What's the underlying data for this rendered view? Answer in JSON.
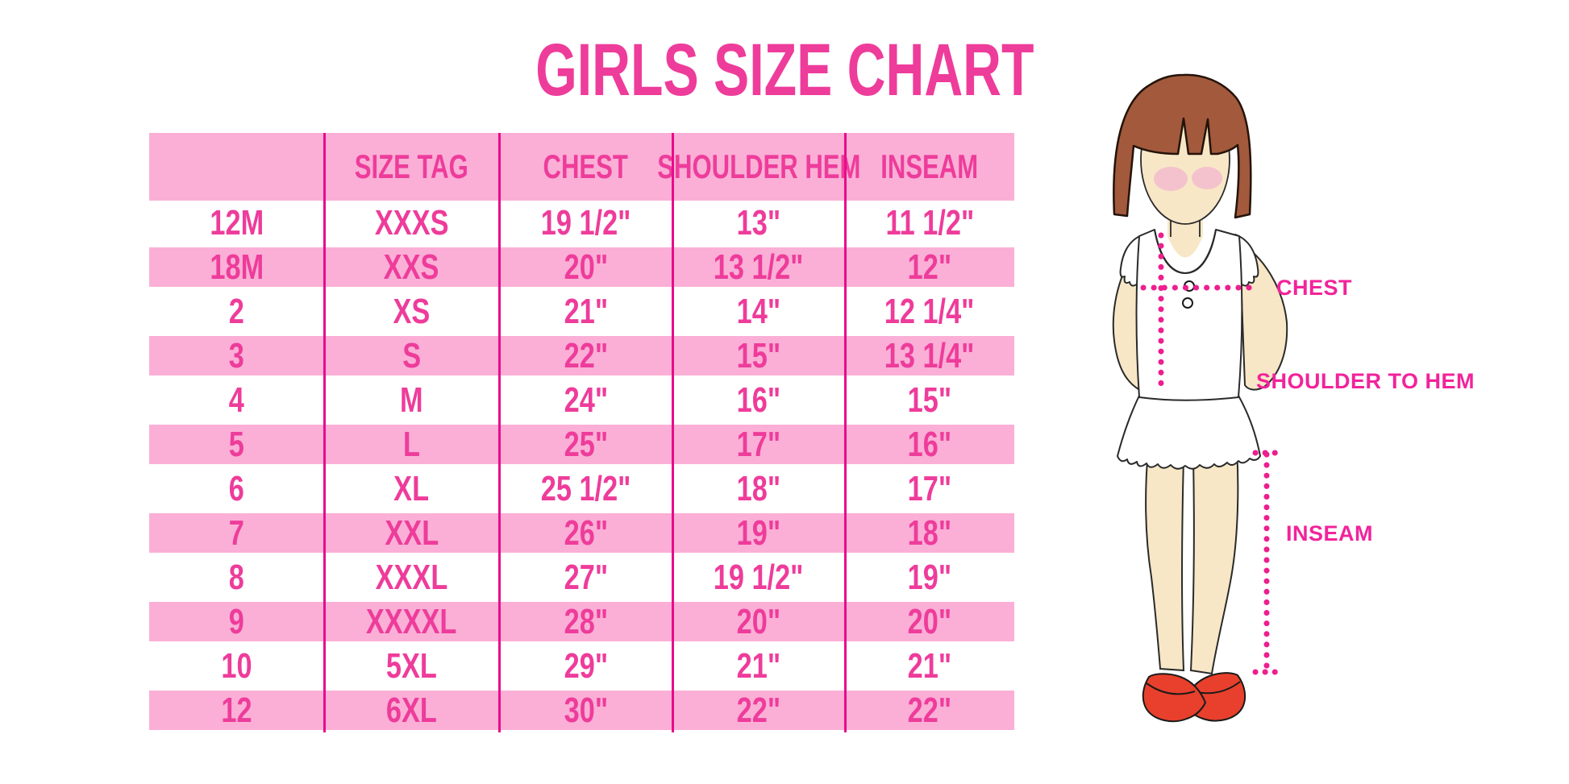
{
  "title": "GIRLS SIZE CHART",
  "table": {
    "headers": [
      "",
      "SIZE TAG",
      "CHEST",
      "SHOULDER HEM",
      "INSEAM"
    ]
  },
  "chart_data": {
    "type": "table",
    "title": "GIRLS SIZE CHART",
    "columns": [
      "",
      "SIZE TAG",
      "CHEST",
      "SHOULDER HEM",
      "INSEAM"
    ],
    "rows": [
      [
        "12M",
        "XXXS",
        "19 1/2\"",
        "13\"",
        "11 1/2\""
      ],
      [
        "18M",
        "XXS",
        "20\"",
        "13 1/2\"",
        "12\""
      ],
      [
        "2",
        "XS",
        "21\"",
        "14\"",
        "12 1/4\""
      ],
      [
        "3",
        "S",
        "22\"",
        "15\"",
        "13 1/4\""
      ],
      [
        "4",
        "M",
        "24\"",
        "16\"",
        "15\""
      ],
      [
        "5",
        "L",
        "25\"",
        "17\"",
        "16\""
      ],
      [
        "6",
        "XL",
        "25 1/2\"",
        "18\"",
        "17\""
      ],
      [
        "7",
        "XXL",
        "26\"",
        "19\"",
        "18\""
      ],
      [
        "8",
        "XXXL",
        "27\"",
        "19 1/2\"",
        "19\""
      ],
      [
        "9",
        "XXXXL",
        "28\"",
        "20\"",
        "20\""
      ],
      [
        "10",
        "5XL",
        "29\"",
        "21\"",
        "21\""
      ],
      [
        "12",
        "6XL",
        "30\"",
        "22\"",
        "22\""
      ]
    ],
    "row_band_style": "alternating white and pink starting white",
    "legend_position": "none",
    "grid": "vertical magenta separators only"
  },
  "diagram": {
    "labels": {
      "chest": "CHEST",
      "shoulder_to_hem": "SHOULDER TO HEM",
      "inseam": "INSEAM"
    }
  },
  "colors": {
    "title_pink": "#ee3c9b",
    "band_pink": "#fbafd6",
    "separator_magenta": "#e70c8b",
    "label_pink": "#f2239b",
    "dotted_line_pink": "#ed1e8f",
    "hair_brown": "#a2593c",
    "skin": "#f7e7c6",
    "blush": "#f4c2cc",
    "shoe_red": "#e8402c"
  }
}
